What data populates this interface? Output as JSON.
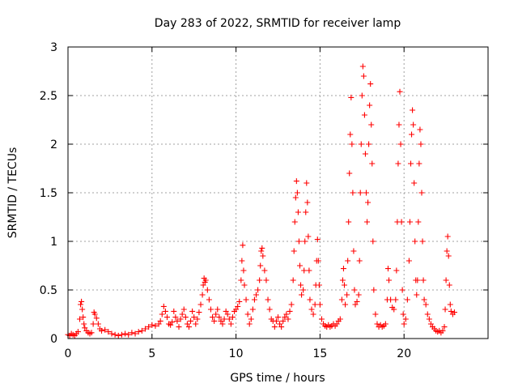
{
  "chart_data": {
    "type": "scatter",
    "title": "Day 283 of 2022, SRMTID for receiver lamp",
    "xlabel": "GPS time / hours",
    "ylabel": "SRMTID / TECUs",
    "xlim": [
      0,
      25
    ],
    "ylim": [
      0,
      3
    ],
    "xticks": [
      0,
      5,
      10,
      15,
      20
    ],
    "xtick_labels": [
      "0",
      "5",
      "10",
      "15",
      "20"
    ],
    "yticks": [
      0,
      0.5,
      1,
      1.5,
      2,
      2.5,
      3
    ],
    "ytick_labels": [
      "0",
      "0.5",
      "1",
      "1.5",
      "2",
      "2.5",
      "3"
    ],
    "grid": true,
    "marker": "+",
    "color": "#ff0000",
    "series": [
      {
        "name": "SRMTID",
        "points": [
          [
            0.0,
            0.04
          ],
          [
            0.1,
            0.03
          ],
          [
            0.2,
            0.05
          ],
          [
            0.3,
            0.04
          ],
          [
            0.4,
            0.03
          ],
          [
            0.5,
            0.05
          ],
          [
            0.6,
            0.07
          ],
          [
            0.7,
            0.2
          ],
          [
            0.75,
            0.35
          ],
          [
            0.8,
            0.38
          ],
          [
            0.85,
            0.3
          ],
          [
            0.9,
            0.22
          ],
          [
            0.95,
            0.15
          ],
          [
            1.0,
            0.11
          ],
          [
            1.1,
            0.08
          ],
          [
            1.2,
            0.06
          ],
          [
            1.3,
            0.05
          ],
          [
            1.4,
            0.06
          ],
          [
            1.5,
            0.15
          ],
          [
            1.55,
            0.27
          ],
          [
            1.6,
            0.25
          ],
          [
            1.7,
            0.21
          ],
          [
            1.8,
            0.15
          ],
          [
            1.9,
            0.1
          ],
          [
            2.0,
            0.08
          ],
          [
            2.2,
            0.09
          ],
          [
            2.4,
            0.07
          ],
          [
            2.6,
            0.05
          ],
          [
            2.8,
            0.04
          ],
          [
            3.0,
            0.03
          ],
          [
            3.2,
            0.04
          ],
          [
            3.4,
            0.05
          ],
          [
            3.6,
            0.04
          ],
          [
            3.8,
            0.06
          ],
          [
            4.0,
            0.05
          ],
          [
            4.2,
            0.07
          ],
          [
            4.4,
            0.08
          ],
          [
            4.6,
            0.1
          ],
          [
            4.8,
            0.12
          ],
          [
            5.0,
            0.14
          ],
          [
            5.2,
            0.13
          ],
          [
            5.4,
            0.15
          ],
          [
            5.5,
            0.18
          ],
          [
            5.6,
            0.25
          ],
          [
            5.7,
            0.33
          ],
          [
            5.8,
            0.28
          ],
          [
            5.9,
            0.22
          ],
          [
            6.0,
            0.15
          ],
          [
            6.1,
            0.14
          ],
          [
            6.2,
            0.17
          ],
          [
            6.3,
            0.28
          ],
          [
            6.4,
            0.22
          ],
          [
            6.5,
            0.18
          ],
          [
            6.6,
            0.12
          ],
          [
            6.7,
            0.2
          ],
          [
            6.8,
            0.25
          ],
          [
            6.9,
            0.3
          ],
          [
            7.0,
            0.22
          ],
          [
            7.1,
            0.15
          ],
          [
            7.2,
            0.12
          ],
          [
            7.3,
            0.18
          ],
          [
            7.4,
            0.28
          ],
          [
            7.5,
            0.22
          ],
          [
            7.6,
            0.15
          ],
          [
            7.7,
            0.2
          ],
          [
            7.8,
            0.27
          ],
          [
            7.9,
            0.35
          ],
          [
            8.0,
            0.45
          ],
          [
            8.05,
            0.55
          ],
          [
            8.1,
            0.62
          ],
          [
            8.15,
            0.58
          ],
          [
            8.2,
            0.6
          ],
          [
            8.3,
            0.5
          ],
          [
            8.4,
            0.4
          ],
          [
            8.5,
            0.3
          ],
          [
            8.6,
            0.22
          ],
          [
            8.7,
            0.18
          ],
          [
            8.8,
            0.25
          ],
          [
            8.9,
            0.3
          ],
          [
            9.0,
            0.22
          ],
          [
            9.1,
            0.18
          ],
          [
            9.2,
            0.15
          ],
          [
            9.3,
            0.2
          ],
          [
            9.4,
            0.28
          ],
          [
            9.5,
            0.25
          ],
          [
            9.6,
            0.2
          ],
          [
            9.7,
            0.15
          ],
          [
            9.8,
            0.22
          ],
          [
            9.9,
            0.28
          ],
          [
            10.0,
            0.3
          ],
          [
            10.1,
            0.33
          ],
          [
            10.2,
            0.38
          ],
          [
            10.3,
            0.6
          ],
          [
            10.35,
            0.8
          ],
          [
            10.4,
            0.96
          ],
          [
            10.45,
            0.7
          ],
          [
            10.5,
            0.55
          ],
          [
            10.6,
            0.4
          ],
          [
            10.7,
            0.25
          ],
          [
            10.8,
            0.15
          ],
          [
            10.9,
            0.2
          ],
          [
            11.0,
            0.3
          ],
          [
            11.1,
            0.4
          ],
          [
            11.2,
            0.45
          ],
          [
            11.3,
            0.5
          ],
          [
            11.4,
            0.6
          ],
          [
            11.45,
            0.75
          ],
          [
            11.5,
            0.9
          ],
          [
            11.55,
            0.93
          ],
          [
            11.6,
            0.85
          ],
          [
            11.7,
            0.7
          ],
          [
            11.8,
            0.6
          ],
          [
            11.9,
            0.4
          ],
          [
            12.0,
            0.3
          ],
          [
            12.1,
            0.2
          ],
          [
            12.2,
            0.18
          ],
          [
            12.3,
            0.12
          ],
          [
            12.4,
            0.18
          ],
          [
            12.5,
            0.22
          ],
          [
            12.6,
            0.15
          ],
          [
            12.7,
            0.12
          ],
          [
            12.8,
            0.18
          ],
          [
            12.9,
            0.22
          ],
          [
            13.0,
            0.25
          ],
          [
            13.1,
            0.2
          ],
          [
            13.2,
            0.28
          ],
          [
            13.3,
            0.35
          ],
          [
            13.4,
            0.6
          ],
          [
            13.45,
            0.9
          ],
          [
            13.5,
            1.2
          ],
          [
            13.55,
            1.45
          ],
          [
            13.6,
            1.62
          ],
          [
            13.65,
            1.5
          ],
          [
            13.7,
            1.3
          ],
          [
            13.75,
            1.0
          ],
          [
            13.8,
            0.75
          ],
          [
            13.85,
            0.55
          ],
          [
            13.9,
            0.45
          ],
          [
            14.0,
            0.5
          ],
          [
            14.05,
            0.7
          ],
          [
            14.1,
            1.0
          ],
          [
            14.15,
            1.3
          ],
          [
            14.2,
            1.6
          ],
          [
            14.25,
            1.4
          ],
          [
            14.3,
            1.05
          ],
          [
            14.35,
            0.7
          ],
          [
            14.4,
            0.4
          ],
          [
            14.5,
            0.3
          ],
          [
            14.6,
            0.25
          ],
          [
            14.7,
            0.35
          ],
          [
            14.75,
            0.55
          ],
          [
            14.8,
            0.8
          ],
          [
            14.85,
            1.02
          ],
          [
            14.9,
            0.8
          ],
          [
            14.95,
            0.55
          ],
          [
            15.0,
            0.35
          ],
          [
            15.1,
            0.2
          ],
          [
            15.2,
            0.15
          ],
          [
            15.3,
            0.13
          ],
          [
            15.4,
            0.12
          ],
          [
            15.5,
            0.14
          ],
          [
            15.6,
            0.12
          ],
          [
            15.7,
            0.13
          ],
          [
            15.8,
            0.15
          ],
          [
            15.9,
            0.13
          ],
          [
            16.0,
            0.15
          ],
          [
            16.1,
            0.18
          ],
          [
            16.2,
            0.2
          ],
          [
            16.3,
            0.4
          ],
          [
            16.35,
            0.6
          ],
          [
            16.4,
            0.72
          ],
          [
            16.45,
            0.55
          ],
          [
            16.5,
            0.35
          ],
          [
            16.6,
            0.45
          ],
          [
            16.65,
            0.8
          ],
          [
            16.7,
            1.2
          ],
          [
            16.75,
            1.7
          ],
          [
            16.8,
            2.1
          ],
          [
            16.85,
            2.48
          ],
          [
            16.9,
            2.0
          ],
          [
            16.95,
            1.5
          ],
          [
            17.0,
            0.9
          ],
          [
            17.05,
            0.5
          ],
          [
            17.1,
            0.35
          ],
          [
            17.2,
            0.38
          ],
          [
            17.3,
            0.45
          ],
          [
            17.35,
            0.8
          ],
          [
            17.4,
            1.5
          ],
          [
            17.45,
            2.0
          ],
          [
            17.5,
            2.5
          ],
          [
            17.55,
            2.8
          ],
          [
            17.6,
            2.7
          ],
          [
            17.65,
            2.3
          ],
          [
            17.7,
            1.9
          ],
          [
            17.75,
            1.5
          ],
          [
            17.8,
            1.2
          ],
          [
            17.85,
            1.4
          ],
          [
            17.9,
            2.0
          ],
          [
            17.95,
            2.4
          ],
          [
            18.0,
            2.62
          ],
          [
            18.05,
            2.2
          ],
          [
            18.1,
            1.8
          ],
          [
            18.15,
            1.0
          ],
          [
            18.2,
            0.5
          ],
          [
            18.3,
            0.25
          ],
          [
            18.4,
            0.15
          ],
          [
            18.5,
            0.12
          ],
          [
            18.6,
            0.14
          ],
          [
            18.7,
            0.12
          ],
          [
            18.8,
            0.13
          ],
          [
            18.9,
            0.15
          ],
          [
            19.0,
            0.4
          ],
          [
            19.05,
            0.72
          ],
          [
            19.1,
            0.6
          ],
          [
            19.2,
            0.4
          ],
          [
            19.3,
            0.32
          ],
          [
            19.4,
            0.3
          ],
          [
            19.5,
            0.4
          ],
          [
            19.55,
            0.7
          ],
          [
            19.6,
            1.2
          ],
          [
            19.65,
            1.8
          ],
          [
            19.7,
            2.2
          ],
          [
            19.75,
            2.54
          ],
          [
            19.8,
            2.0
          ],
          [
            19.85,
            1.2
          ],
          [
            19.9,
            0.5
          ],
          [
            19.95,
            0.25
          ],
          [
            20.0,
            0.15
          ],
          [
            20.1,
            0.2
          ],
          [
            20.2,
            0.4
          ],
          [
            20.3,
            0.8
          ],
          [
            20.35,
            1.2
          ],
          [
            20.4,
            1.8
          ],
          [
            20.45,
            2.1
          ],
          [
            20.5,
            2.35
          ],
          [
            20.55,
            2.2
          ],
          [
            20.6,
            1.6
          ],
          [
            20.65,
            1.0
          ],
          [
            20.7,
            0.6
          ],
          [
            20.75,
            0.45
          ],
          [
            20.8,
            0.6
          ],
          [
            20.85,
            1.2
          ],
          [
            20.9,
            1.8
          ],
          [
            20.95,
            2.15
          ],
          [
            21.0,
            2.0
          ],
          [
            21.05,
            1.5
          ],
          [
            21.1,
            1.0
          ],
          [
            21.15,
            0.6
          ],
          [
            21.2,
            0.4
          ],
          [
            21.3,
            0.35
          ],
          [
            21.4,
            0.25
          ],
          [
            21.5,
            0.2
          ],
          [
            21.6,
            0.15
          ],
          [
            21.7,
            0.12
          ],
          [
            21.8,
            0.1
          ],
          [
            21.9,
            0.08
          ],
          [
            22.0,
            0.07
          ],
          [
            22.1,
            0.08
          ],
          [
            22.2,
            0.06
          ],
          [
            22.3,
            0.08
          ],
          [
            22.4,
            0.12
          ],
          [
            22.45,
            0.3
          ],
          [
            22.5,
            0.6
          ],
          [
            22.55,
            0.9
          ],
          [
            22.6,
            1.05
          ],
          [
            22.65,
            0.85
          ],
          [
            22.7,
            0.55
          ],
          [
            22.75,
            0.35
          ],
          [
            22.8,
            0.28
          ],
          [
            22.9,
            0.25
          ],
          [
            23.0,
            0.27
          ]
        ]
      }
    ]
  }
}
